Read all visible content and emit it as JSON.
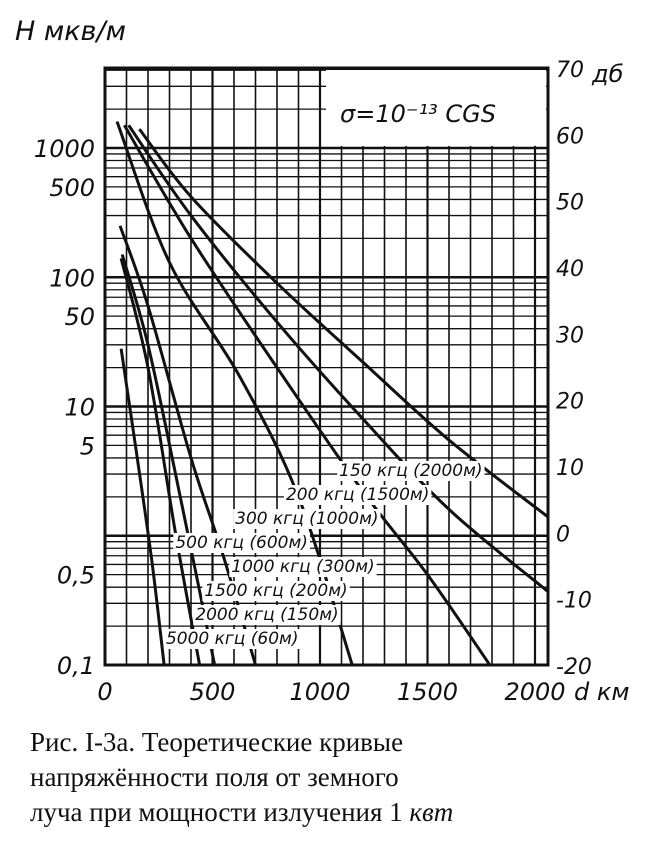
{
  "chart_data": {
    "type": "line",
    "title": "",
    "ylabel": "H мкв/м",
    "ylabel_right": "дб",
    "xlabel": "d км",
    "x_scale": "linear",
    "y_scale": "log",
    "xlim": [
      0,
      2060
    ],
    "ylim": [
      0.1,
      4000
    ],
    "y_right_lim": [
      -20,
      70
    ],
    "grid": true,
    "annotation": "σ=10⁻¹³ CGS",
    "x_ticks": [
      "0",
      "500",
      "1000",
      "1500",
      "2000"
    ],
    "x_tick_values": [
      0,
      500,
      1000,
      1500,
      2000
    ],
    "y_ticks": [
      "1000",
      "500",
      "100",
      "50",
      "10",
      "5",
      "0,5",
      "0,1"
    ],
    "y_tick_values": [
      1000,
      500,
      100,
      50,
      10,
      5,
      0.5,
      0.1
    ],
    "y_right_ticks": [
      "70",
      "60",
      "50",
      "40",
      "30",
      "20",
      "10",
      "0",
      "-10",
      "-20"
    ],
    "y_right_tick_values": [
      70,
      60,
      50,
      40,
      30,
      20,
      10,
      0,
      -10,
      -20
    ],
    "series": [
      {
        "name": "150 кгц (2000м)",
        "points": [
          [
            160,
            1400
          ],
          [
            400,
            420
          ],
          [
            800,
            90
          ],
          [
            1200,
            22
          ],
          [
            1600,
            5.5
          ],
          [
            2060,
            1.4
          ]
        ]
      },
      {
        "name": "200 кгц (1500м)",
        "points": [
          [
            110,
            1500
          ],
          [
            400,
            300
          ],
          [
            800,
            45
          ],
          [
            1200,
            8
          ],
          [
            1600,
            1.6
          ],
          [
            2060,
            0.37
          ]
        ]
      },
      {
        "name": "300 кгц (1000м)",
        "points": [
          [
            90,
            1500
          ],
          [
            400,
            200
          ],
          [
            800,
            20
          ],
          [
            1200,
            2.2
          ],
          [
            1500,
            0.5
          ],
          [
            1790,
            0.1
          ]
        ]
      },
      {
        "name": "500 кгц (600м)",
        "points": [
          [
            56,
            1600
          ],
          [
            300,
            130
          ],
          [
            627,
            17
          ],
          [
            900,
            2
          ],
          [
            1150,
            0.1
          ]
        ]
      },
      {
        "name": "1000 кгц (300м)",
        "points": [
          [
            70,
            250
          ],
          [
            200,
            60
          ],
          [
            400,
            4
          ],
          [
            550,
            0.7
          ],
          [
            700,
            0.1
          ]
        ]
      },
      {
        "name": "1500 кгц (200м)",
        "points": [
          [
            80,
            150
          ],
          [
            200,
            30
          ],
          [
            350,
            2
          ],
          [
            510,
            0.1
          ]
        ]
      },
      {
        "name": "2000 кгц (150м)",
        "points": [
          [
            75,
            140
          ],
          [
            200,
            20
          ],
          [
            330,
            1
          ],
          [
            440,
            0.1
          ]
        ]
      },
      {
        "name": "5000 кгц (60м)",
        "points": [
          [
            75,
            28
          ],
          [
            150,
            4
          ],
          [
            220,
            0.6
          ],
          [
            275,
            0.1
          ]
        ]
      }
    ]
  },
  "caption": {
    "line1": "Рис. I-3а. Теоретические кривые",
    "line2": "напряжённости поля от земного",
    "line3_text": "луча при мощности излучения 1 ",
    "line3_unit": "квт"
  }
}
